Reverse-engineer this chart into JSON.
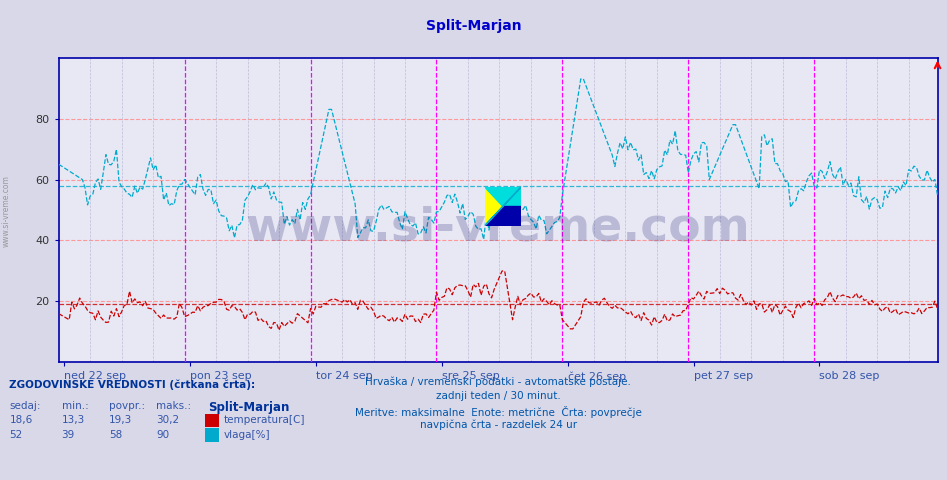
{
  "title": "Split-Marjan",
  "bg_color": "#d8d8e8",
  "plot_bg_color": "#e8e8f5",
  "title_color": "#0000cc",
  "title_fontsize": 10,
  "xlabel_dates": [
    "ned 22 sep",
    "pon 23 sep",
    "tor 24 sep",
    "sre 25 sep",
    "čet 26 sep",
    "pet 27 sep",
    "sob 28 sep"
  ],
  "ylim": [
    0,
    100
  ],
  "yticks": [
    20,
    40,
    60,
    80
  ],
  "grid_color_h": "#ff9999",
  "vline_color_day": "#ff00ff",
  "vline_color_6h": "#aaaacc",
  "temp_color": "#cc0000",
  "humidity_color": "#00aacc",
  "footer_line1": "Hrvaška / vremenski podatki - avtomatske postaje.",
  "footer_line2": "zadnji teden / 30 minut.",
  "footer_line3": "Meritve: maksimalne  Enote: metrične  Črta: povprečje",
  "footer_line4": "navpična črta - razdelek 24 ur",
  "hist_title": "ZGODOVINSKE VREDNOSTI (črtkana črta):",
  "hist_headers": [
    "sedaj:",
    "min.:",
    "povpr.:",
    "maks.:"
  ],
  "temp_stats": [
    "18,6",
    "13,3",
    "19,3",
    "30,2"
  ],
  "humidity_stats": [
    "52",
    "39",
    "58",
    "90"
  ],
  "temp_label": "temperatura[C]",
  "humidity_label": "vlaga[%]",
  "avg_temp": 19.3,
  "avg_humidity": 58,
  "n_points": 336,
  "watermark_text": "www.si-vreme.com",
  "watermark_color": "#1a1a6e",
  "watermark_alpha": 0.22
}
